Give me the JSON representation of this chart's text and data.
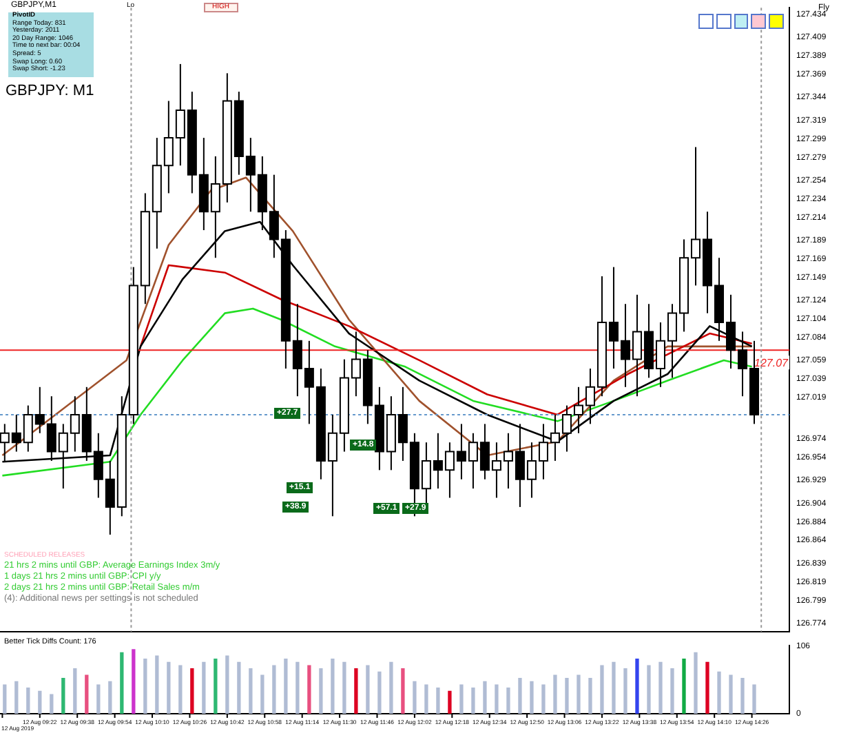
{
  "chart_data": [
    {
      "type": "candlestick",
      "title": "GBPJPY: M1",
      "subtitle": "GBPJPY,M1",
      "x": [
        "2019-08-12T09:07",
        "2019-08-12T09:12",
        "2019-08-12T09:17",
        "2019-08-12T09:22",
        "2019-08-12T09:27",
        "2019-08-12T09:32",
        "2019-08-12T09:37",
        "2019-08-12T09:42",
        "2019-08-12T09:47",
        "2019-08-12T09:52",
        "2019-08-12T09:57",
        "2019-08-12T10:02",
        "2019-08-12T10:07",
        "2019-08-12T10:12",
        "2019-08-12T10:17",
        "2019-08-12T10:22",
        "2019-08-12T10:27",
        "2019-08-12T10:32",
        "2019-08-12T10:37",
        "2019-08-12T10:42",
        "2019-08-12T10:47",
        "2019-08-12T10:52",
        "2019-08-12T10:57",
        "2019-08-12T11:02",
        "2019-08-12T11:07",
        "2019-08-12T11:12",
        "2019-08-12T11:17",
        "2019-08-12T11:22",
        "2019-08-12T11:27",
        "2019-08-12T11:32",
        "2019-08-12T11:37",
        "2019-08-12T11:42",
        "2019-08-12T11:47",
        "2019-08-12T11:52",
        "2019-08-12T11:57",
        "2019-08-12T12:02",
        "2019-08-12T12:07",
        "2019-08-12T12:12",
        "2019-08-12T12:17",
        "2019-08-12T12:22",
        "2019-08-12T12:27",
        "2019-08-12T12:32",
        "2019-08-12T12:37",
        "2019-08-12T12:42",
        "2019-08-12T12:47",
        "2019-08-12T12:52",
        "2019-08-12T12:57",
        "2019-08-12T13:02",
        "2019-08-12T13:07",
        "2019-08-12T13:12",
        "2019-08-12T13:17",
        "2019-08-12T13:22",
        "2019-08-12T13:27",
        "2019-08-12T13:32",
        "2019-08-12T13:37",
        "2019-08-12T13:42",
        "2019-08-12T13:47",
        "2019-08-12T13:52",
        "2019-08-12T13:57",
        "2019-08-12T14:02",
        "2019-08-12T14:07",
        "2019-08-12T14:12",
        "2019-08-12T14:17",
        "2019-08-12T14:22",
        "2019-08-12T14:27"
      ],
      "ohlc": [
        [
          126.97,
          126.99,
          126.95,
          126.98
        ],
        [
          126.98,
          127.0,
          126.96,
          126.97
        ],
        [
          126.97,
          127.01,
          126.96,
          127.0
        ],
        [
          127.0,
          127.03,
          126.98,
          126.99
        ],
        [
          126.99,
          127.02,
          126.95,
          126.96
        ],
        [
          126.96,
          126.99,
          126.92,
          126.98
        ],
        [
          126.98,
          127.02,
          126.96,
          127.0
        ],
        [
          127.0,
          127.03,
          126.95,
          126.96
        ],
        [
          126.96,
          126.98,
          126.91,
          126.93
        ],
        [
          126.93,
          126.95,
          126.87,
          126.9
        ],
        [
          126.9,
          127.02,
          126.89,
          127.0
        ],
        [
          127.0,
          127.16,
          126.99,
          127.14
        ],
        [
          127.14,
          127.24,
          127.12,
          127.22
        ],
        [
          127.22,
          127.3,
          127.18,
          127.27
        ],
        [
          127.27,
          127.34,
          127.24,
          127.3
        ],
        [
          127.3,
          127.38,
          127.27,
          127.33
        ],
        [
          127.33,
          127.35,
          127.24,
          127.26
        ],
        [
          127.26,
          127.3,
          127.2,
          127.22
        ],
        [
          127.22,
          127.28,
          127.17,
          127.25
        ],
        [
          127.25,
          127.37,
          127.23,
          127.34
        ],
        [
          127.34,
          127.35,
          127.26,
          127.28
        ],
        [
          127.28,
          127.3,
          127.22,
          127.26
        ],
        [
          127.26,
          127.28,
          127.2,
          127.22
        ],
        [
          127.22,
          127.26,
          127.17,
          127.19
        ],
        [
          127.19,
          127.2,
          127.05,
          127.08
        ],
        [
          127.08,
          127.12,
          127.02,
          127.05
        ],
        [
          127.05,
          127.08,
          126.99,
          127.03
        ],
        [
          127.03,
          127.05,
          126.93,
          126.95
        ],
        [
          126.95,
          127.0,
          126.89,
          126.98
        ],
        [
          126.98,
          127.06,
          126.96,
          127.04
        ],
        [
          127.04,
          127.09,
          127.02,
          127.06
        ],
        [
          127.06,
          127.07,
          126.99,
          127.01
        ],
        [
          127.01,
          127.03,
          126.94,
          126.96
        ],
        [
          126.96,
          127.02,
          126.94,
          127.0
        ],
        [
          127.0,
          127.03,
          126.95,
          126.97
        ],
        [
          126.97,
          126.98,
          126.89,
          126.92
        ],
        [
          126.92,
          126.97,
          126.9,
          126.95
        ],
        [
          126.95,
          126.98,
          126.92,
          126.94
        ],
        [
          126.94,
          126.97,
          126.91,
          126.96
        ],
        [
          126.96,
          126.99,
          126.93,
          126.95
        ],
        [
          126.95,
          126.98,
          126.92,
          126.97
        ],
        [
          126.97,
          126.99,
          126.93,
          126.94
        ],
        [
          126.94,
          126.97,
          126.91,
          126.95
        ],
        [
          126.95,
          126.98,
          126.92,
          126.96
        ],
        [
          126.96,
          126.99,
          126.9,
          126.93
        ],
        [
          126.93,
          126.97,
          126.91,
          126.95
        ],
        [
          126.95,
          126.99,
          126.93,
          126.97
        ],
        [
          126.97,
          127.0,
          126.95,
          126.98
        ],
        [
          126.98,
          127.01,
          126.96,
          127.0
        ],
        [
          127.0,
          127.03,
          126.98,
          127.01
        ],
        [
          127.01,
          127.05,
          126.99,
          127.03
        ],
        [
          127.03,
          127.15,
          127.02,
          127.1
        ],
        [
          127.1,
          127.16,
          127.05,
          127.08
        ],
        [
          127.08,
          127.12,
          127.03,
          127.06
        ],
        [
          127.06,
          127.13,
          127.02,
          127.09
        ],
        [
          127.09,
          127.12,
          127.04,
          127.05
        ],
        [
          127.05,
          127.1,
          127.03,
          127.08
        ],
        [
          127.08,
          127.12,
          127.04,
          127.11
        ],
        [
          127.11,
          127.19,
          127.09,
          127.17
        ],
        [
          127.17,
          127.29,
          127.14,
          127.19
        ],
        [
          127.19,
          127.22,
          127.11,
          127.14
        ],
        [
          127.14,
          127.17,
          127.08,
          127.1
        ],
        [
          127.1,
          127.13,
          127.05,
          127.07
        ],
        [
          127.07,
          127.09,
          127.02,
          127.05
        ],
        [
          127.05,
          127.08,
          126.99,
          127.0
        ]
      ],
      "series": [
        {
          "type": "line",
          "color": "#000000",
          "x": [
            "2019-08-12T09:06",
            "2019-08-12T09:52",
            "2019-08-12T10:05",
            "2019-08-12T10:23",
            "2019-08-12T10:41",
            "2019-08-12T10:56",
            "2019-08-12T11:10",
            "2019-08-12T11:34",
            "2019-08-12T12:04",
            "2019-08-12T12:33",
            "2019-08-12T13:03",
            "2019-08-12T13:27",
            "2019-08-12T13:50",
            "2019-08-12T14:08",
            "2019-08-12T14:26"
          ],
          "values": [
            126.949,
            126.956,
            127.074,
            127.147,
            127.199,
            127.209,
            127.162,
            127.088,
            127.037,
            127.0,
            126.971,
            127.015,
            127.044,
            127.096,
            127.074
          ]
        },
        {
          "type": "line",
          "color": "#cc0000",
          "x": [
            "2019-08-12T10:05",
            "2019-08-12T10:17",
            "2019-08-12T10:41",
            "2019-08-12T11:05",
            "2019-08-12T11:34",
            "2019-08-12T12:04",
            "2019-08-12T12:33",
            "2019-08-12T13:03",
            "2019-08-12T13:33",
            "2019-08-12T14:08",
            "2019-08-12T14:26"
          ],
          "values": [
            127.074,
            127.162,
            127.154,
            127.125,
            127.096,
            127.059,
            127.022,
            127.0,
            127.044,
            127.088,
            127.077
          ]
        },
        {
          "type": "line",
          "color": "#a0522d",
          "x": [
            "2019-08-12T09:06",
            "2019-08-12T09:59",
            "2019-08-12T10:17",
            "2019-08-12T10:35",
            "2019-08-12T10:50",
            "2019-08-12T11:10",
            "2019-08-12T11:34",
            "2019-08-12T12:04",
            "2019-08-12T12:33",
            "2019-08-12T13:03",
            "2019-08-12T13:27",
            "2019-08-12T13:50",
            "2019-08-12T14:26"
          ],
          "values": [
            126.956,
            127.059,
            127.184,
            127.243,
            127.257,
            127.199,
            127.103,
            127.015,
            126.956,
            126.971,
            127.037,
            127.074,
            127.074
          ]
        },
        {
          "type": "line",
          "color": "#22dd22",
          "x": [
            "2019-08-12T09:06",
            "2019-08-12T09:52",
            "2019-08-12T10:05",
            "2019-08-12T10:23",
            "2019-08-12T10:41",
            "2019-08-12T10:53",
            "2019-08-12T11:05",
            "2019-08-12T11:28",
            "2019-08-12T11:58",
            "2019-08-12T12:27",
            "2019-08-12T13:03",
            "2019-08-12T13:27",
            "2019-08-12T13:50",
            "2019-08-12T14:14",
            "2019-08-12T14:26"
          ],
          "values": [
            126.934,
            126.949,
            127.0,
            127.059,
            127.11,
            127.115,
            127.103,
            127.074,
            127.052,
            127.015,
            126.993,
            127.015,
            127.037,
            127.059,
            127.052
          ]
        }
      ],
      "xlim": [
        "2019-08-12T09:05",
        "2019-08-12T14:42"
      ],
      "ylim": [
        126.765,
        127.441
      ],
      "yticks": [
        127.434,
        127.409,
        127.389,
        127.369,
        127.344,
        127.319,
        127.299,
        127.279,
        127.254,
        127.234,
        127.214,
        127.189,
        127.169,
        127.149,
        127.124,
        127.104,
        127.084,
        127.059,
        127.039,
        127.019,
        126.974,
        126.954,
        126.929,
        126.904,
        126.884,
        126.864,
        126.839,
        126.819,
        126.799,
        126.774
      ],
      "tick_labels": "y",
      "ref_lines": [
        {
          "axis": "y",
          "value": 127.07,
          "label": "127.07",
          "color": "#ee2222",
          "line_style": "solid"
        },
        {
          "axis": "y",
          "value": 127.0,
          "color": "#6699cc",
          "line_style": "dotted"
        },
        {
          "axis": "x",
          "value": "2019-08-12T10:01",
          "color": "#999999",
          "line_style": "dotted"
        },
        {
          "axis": "x",
          "value": "2019-08-12T14:30",
          "color": "#999999",
          "line_style": "dotted"
        }
      ],
      "annotations": [
        "PivotID",
        "Range Today: 831",
        "Yesterday: 2011",
        "20 Day Range: 1046",
        "Time to next bar: 00:04",
        "Spread: 5",
        "Swap Long: 0.60",
        "Swap Short: -1.23",
        "HIGH",
        "Lo",
        "Fly",
        "SCHEDULED RELEASES",
        "21 hrs 2 mins until GBP: Average Earnings Index 3m/y",
        "1 days 21 hrs 2 mins until GBP: CPI y/y",
        "2 days 21 hrs 2 mins until GBP: Retail Sales m/m",
        "(4): Additional news per settings is not scheduled",
        "+27.7",
        "+14.8",
        "+15.1",
        "+38.9",
        "+57.1",
        "+27.9"
      ]
    },
    {
      "type": "bar",
      "title": "Better Tick Diffs   Count: 176",
      "x": [
        "2019-08-12T09:07",
        "2019-08-12T09:12",
        "2019-08-12T09:17",
        "2019-08-12T09:22",
        "2019-08-12T09:27",
        "2019-08-12T09:32",
        "2019-08-12T09:37",
        "2019-08-12T09:42",
        "2019-08-12T09:47",
        "2019-08-12T09:52",
        "2019-08-12T09:57",
        "2019-08-12T10:02",
        "2019-08-12T10:07",
        "2019-08-12T10:12",
        "2019-08-12T10:17",
        "2019-08-12T10:22",
        "2019-08-12T10:27",
        "2019-08-12T10:32",
        "2019-08-12T10:37",
        "2019-08-12T10:42",
        "2019-08-12T10:47",
        "2019-08-12T10:52",
        "2019-08-12T10:57",
        "2019-08-12T11:02",
        "2019-08-12T11:07",
        "2019-08-12T11:12",
        "2019-08-12T11:17",
        "2019-08-12T11:22",
        "2019-08-12T11:27",
        "2019-08-12T11:32",
        "2019-08-12T11:37",
        "2019-08-12T11:42",
        "2019-08-12T11:47",
        "2019-08-12T11:52",
        "2019-08-12T11:57",
        "2019-08-12T12:02",
        "2019-08-12T12:07",
        "2019-08-12T12:12",
        "2019-08-12T12:17",
        "2019-08-12T12:22",
        "2019-08-12T12:27",
        "2019-08-12T12:32",
        "2019-08-12T12:37",
        "2019-08-12T12:42",
        "2019-08-12T12:47",
        "2019-08-12T12:52",
        "2019-08-12T12:57",
        "2019-08-12T13:02",
        "2019-08-12T13:07",
        "2019-08-12T13:12",
        "2019-08-12T13:17",
        "2019-08-12T13:22",
        "2019-08-12T13:27",
        "2019-08-12T13:32",
        "2019-08-12T13:37",
        "2019-08-12T13:42",
        "2019-08-12T13:47",
        "2019-08-12T13:52",
        "2019-08-12T13:57",
        "2019-08-12T14:02",
        "2019-08-12T14:07",
        "2019-08-12T14:12",
        "2019-08-12T14:17",
        "2019-08-12T14:22",
        "2019-08-12T14:27"
      ],
      "values": [
        45,
        50,
        40,
        35,
        30,
        55,
        70,
        60,
        45,
        50,
        95,
        100,
        85,
        90,
        80,
        75,
        70,
        80,
        85,
        90,
        80,
        70,
        60,
        75,
        85,
        80,
        75,
        70,
        85,
        80,
        70,
        75,
        65,
        80,
        70,
        50,
        45,
        40,
        35,
        45,
        40,
        50,
        45,
        40,
        55,
        50,
        45,
        60,
        55,
        60,
        55,
        75,
        80,
        70,
        85,
        75,
        80,
        70,
        85,
        95,
        80,
        65,
        60,
        55,
        45
      ],
      "colors": [
        "#b0bcd4",
        "#b0bcd4",
        "#b0bcd4",
        "#b0bcd4",
        "#b0bcd4",
        "#2eb872",
        "#b0bcd4",
        "#e85080",
        "#b0bcd4",
        "#b0bcd4",
        "#2eb872",
        "#cc33cc",
        "#b0bcd4",
        "#b0bcd4",
        "#b0bcd4",
        "#b0bcd4",
        "#dd0022",
        "#b0bcd4",
        "#2eb872",
        "#b0bcd4",
        "#b0bcd4",
        "#b0bcd4",
        "#b0bcd4",
        "#b0bcd4",
        "#b0bcd4",
        "#b0bcd4",
        "#e85080",
        "#b0bcd4",
        "#b0bcd4",
        "#b0bcd4",
        "#dd0022",
        "#b0bcd4",
        "#b0bcd4",
        "#b0bcd4",
        "#e85080",
        "#b0bcd4",
        "#b0bcd4",
        "#b0bcd4",
        "#dd0022",
        "#b0bcd4",
        "#b0bcd4",
        "#b0bcd4",
        "#b0bcd4",
        "#b0bcd4",
        "#b0bcd4",
        "#b0bcd4",
        "#b0bcd4",
        "#b0bcd4",
        "#b0bcd4",
        "#b0bcd4",
        "#b0bcd4",
        "#b0bcd4",
        "#b0bcd4",
        "#b0bcd4",
        "#3344ee",
        "#b0bcd4",
        "#b0bcd4",
        "#b0bcd4",
        "#11aa44",
        "#b0bcd4",
        "#dd0022",
        "#b0bcd4",
        "#b0bcd4",
        "#b0bcd4",
        "#b0bcd4"
      ],
      "xlim": [
        "2019-08-12T09:05",
        "2019-08-12T14:42"
      ],
      "xticks": [
        {
          "value": "2019-08-12T09:06",
          "label": null
        },
        {
          "value": "2019-08-12T09:22",
          "label": "12 Aug 09:22"
        },
        {
          "value": "2019-08-12T09:38",
          "label": "12 Aug 09:38"
        },
        {
          "value": "2019-08-12T09:54",
          "label": "12 Aug 09:54"
        },
        {
          "value": "2019-08-12T10:10",
          "label": "12 Aug 10:10"
        },
        {
          "value": "2019-08-12T10:26",
          "label": "12 Aug 10:26"
        },
        {
          "value": "2019-08-12T10:42",
          "label": "12 Aug 10:42"
        },
        {
          "value": "2019-08-12T10:58",
          "label": "12 Aug 10:58"
        },
        {
          "value": "2019-08-12T11:14",
          "label": "12 Aug 11:14"
        },
        {
          "value": "2019-08-12T11:30",
          "label": "12 Aug 11:30"
        },
        {
          "value": "2019-08-12T11:46",
          "label": "12 Aug 11:46"
        },
        {
          "value": "2019-08-12T12:02",
          "label": "12 Aug 12:02"
        },
        {
          "value": "2019-08-12T12:18",
          "label": "12 Aug 12:18"
        },
        {
          "value": "2019-08-12T12:34",
          "label": "12 Aug 12:34"
        },
        {
          "value": "2019-08-12T12:50",
          "label": "12 Aug 12:50"
        },
        {
          "value": "2019-08-12T13:06",
          "label": "12 Aug 13:06"
        },
        {
          "value": "2019-08-12T13:22",
          "label": "12 Aug 13:22"
        },
        {
          "value": "2019-08-12T13:38",
          "label": "12 Aug 13:38"
        },
        {
          "value": "2019-08-12T13:54",
          "label": "12 Aug 13:54"
        },
        {
          "value": "2019-08-12T14:10",
          "label": "12 Aug 14:10"
        },
        {
          "value": "2019-08-12T14:26",
          "label": "12 Aug 14:26"
        }
      ],
      "ylim": [
        0,
        106
      ],
      "yticks": [
        0,
        106
      ],
      "annotations": [
        "12 Aug 2019"
      ]
    }
  ]
}
